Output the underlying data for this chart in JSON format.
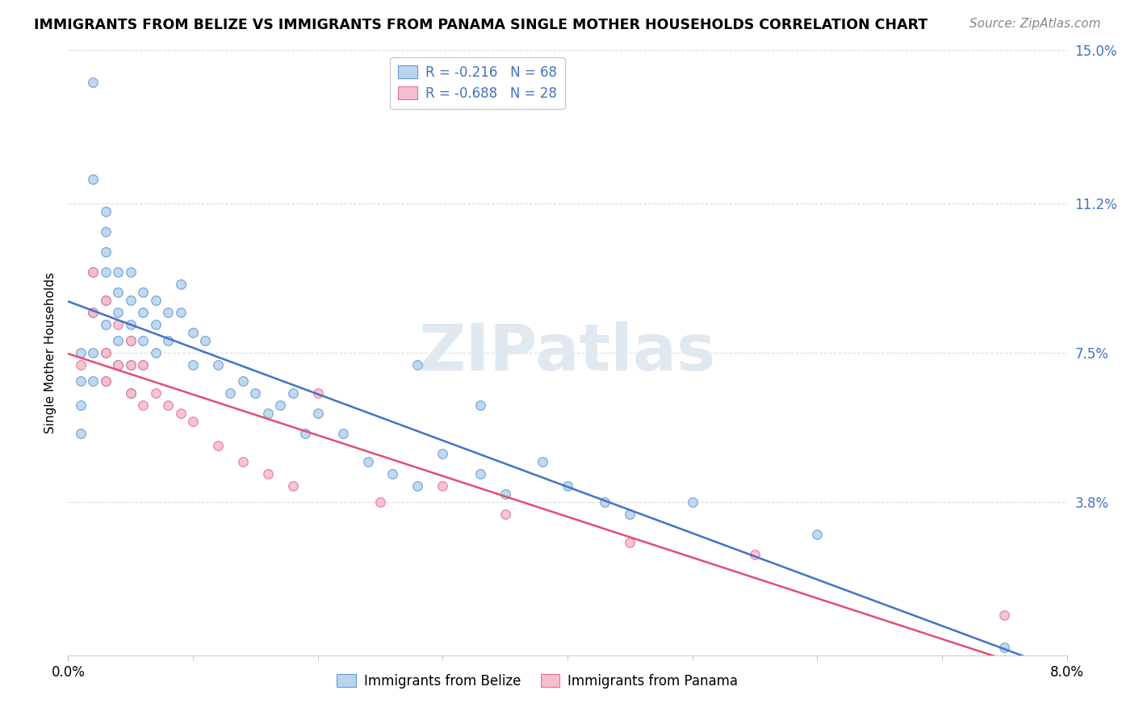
{
  "title": "IMMIGRANTS FROM BELIZE VS IMMIGRANTS FROM PANAMA SINGLE MOTHER HOUSEHOLDS CORRELATION CHART",
  "source": "Source: ZipAtlas.com",
  "ylabel": "Single Mother Households",
  "xmin": 0.0,
  "xmax": 0.08,
  "ymin": 0.0,
  "ymax": 0.15,
  "yticks": [
    0.038,
    0.075,
    0.112,
    0.15
  ],
  "ytick_labels": [
    "3.8%",
    "7.5%",
    "11.2%",
    "15.0%"
  ],
  "xtick_minor": [
    0.0,
    0.01,
    0.02,
    0.03,
    0.04,
    0.05,
    0.06,
    0.07,
    0.08
  ],
  "xtick_labels_show": [
    "0.0%",
    "8.0%"
  ],
  "xtick_show_at": [
    0.0,
    0.08
  ],
  "belize_R": "-0.216",
  "belize_N": "68",
  "panama_R": "-0.688",
  "panama_N": "28",
  "belize_color": "#bad4f0",
  "panama_color": "#f5bece",
  "belize_edge_color": "#6699cc",
  "panama_edge_color": "#e87090",
  "belize_line_color": "#4472c4",
  "panama_line_color": "#e05070",
  "belize_x": [
    0.001,
    0.001,
    0.001,
    0.001,
    0.002,
    0.002,
    0.002,
    0.002,
    0.002,
    0.002,
    0.003,
    0.003,
    0.003,
    0.003,
    0.003,
    0.003,
    0.003,
    0.003,
    0.004,
    0.004,
    0.004,
    0.004,
    0.004,
    0.005,
    0.005,
    0.005,
    0.005,
    0.005,
    0.005,
    0.006,
    0.006,
    0.006,
    0.006,
    0.007,
    0.007,
    0.007,
    0.008,
    0.008,
    0.009,
    0.009,
    0.01,
    0.01,
    0.011,
    0.012,
    0.013,
    0.014,
    0.015,
    0.016,
    0.017,
    0.018,
    0.019,
    0.02,
    0.022,
    0.024,
    0.026,
    0.028,
    0.03,
    0.033,
    0.035,
    0.038,
    0.04,
    0.043,
    0.045,
    0.028,
    0.033,
    0.05,
    0.06,
    0.075
  ],
  "belize_y": [
    0.075,
    0.068,
    0.062,
    0.055,
    0.142,
    0.118,
    0.095,
    0.085,
    0.075,
    0.068,
    0.11,
    0.105,
    0.1,
    0.095,
    0.088,
    0.082,
    0.075,
    0.068,
    0.095,
    0.09,
    0.085,
    0.078,
    0.072,
    0.095,
    0.088,
    0.082,
    0.078,
    0.072,
    0.065,
    0.09,
    0.085,
    0.078,
    0.072,
    0.088,
    0.082,
    0.075,
    0.085,
    0.078,
    0.092,
    0.085,
    0.08,
    0.072,
    0.078,
    0.072,
    0.065,
    0.068,
    0.065,
    0.06,
    0.062,
    0.065,
    0.055,
    0.06,
    0.055,
    0.048,
    0.045,
    0.042,
    0.05,
    0.045,
    0.04,
    0.048,
    0.042,
    0.038,
    0.035,
    0.072,
    0.062,
    0.038,
    0.03,
    0.002
  ],
  "panama_x": [
    0.001,
    0.002,
    0.002,
    0.003,
    0.003,
    0.003,
    0.004,
    0.004,
    0.005,
    0.005,
    0.005,
    0.006,
    0.006,
    0.007,
    0.008,
    0.009,
    0.01,
    0.012,
    0.014,
    0.016,
    0.018,
    0.02,
    0.025,
    0.03,
    0.035,
    0.045,
    0.055,
    0.075
  ],
  "panama_y": [
    0.072,
    0.095,
    0.085,
    0.088,
    0.075,
    0.068,
    0.082,
    0.072,
    0.078,
    0.072,
    0.065,
    0.072,
    0.062,
    0.065,
    0.062,
    0.06,
    0.058,
    0.052,
    0.048,
    0.045,
    0.042,
    0.065,
    0.038,
    0.042,
    0.035,
    0.028,
    0.025,
    0.01
  ],
  "background_color": "#ffffff",
  "grid_color": "#dddddd",
  "watermark_text": "ZIPatlas",
  "watermark_color": "#e0e8f0",
  "title_fontsize": 12.5,
  "source_fontsize": 11,
  "tick_fontsize": 12,
  "legend_fontsize": 12,
  "ylabel_fontsize": 11,
  "marker_size": 70,
  "marker_edge_width": 0.8,
  "trend_linewidth": 1.8
}
